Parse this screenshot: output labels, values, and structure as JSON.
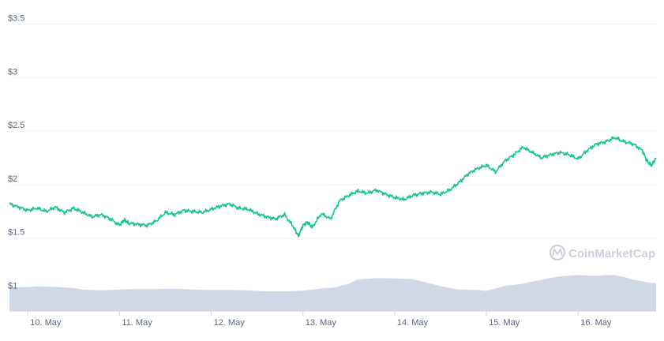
{
  "chart_data": {
    "type": "line",
    "title": "",
    "xlabel": "",
    "ylabel": "",
    "y_ticks": [
      {
        "value": 1.0,
        "label": "$1"
      },
      {
        "value": 1.5,
        "label": "$1.5"
      },
      {
        "value": 2.0,
        "label": "$2"
      },
      {
        "value": 2.5,
        "label": "$2.5"
      },
      {
        "value": 3.0,
        "label": "$3"
      },
      {
        "value": 3.5,
        "label": "$3.5"
      }
    ],
    "ylim": [
      0.82,
      3.68
    ],
    "x_ticks": [
      {
        "day": 0,
        "label": "10. May"
      },
      {
        "day": 1,
        "label": "11. May"
      },
      {
        "day": 2,
        "label": "12. May"
      },
      {
        "day": 3,
        "label": "13. May"
      },
      {
        "day": 4,
        "label": "14. May"
      },
      {
        "day": 5,
        "label": "15. May"
      },
      {
        "day": 6,
        "label": "16. May"
      }
    ],
    "xlim": [
      -0.2,
      6.85
    ],
    "grid": true,
    "series": [
      {
        "kind": "price",
        "color": "#16c784",
        "x": [
          -0.2,
          -0.1,
          0,
          0.1,
          0.2,
          0.3,
          0.4,
          0.5,
          0.6,
          0.7,
          0.8,
          0.9,
          1.0,
          1.05,
          1.1,
          1.2,
          1.3,
          1.4,
          1.5,
          1.6,
          1.7,
          1.8,
          1.9,
          2.0,
          2.1,
          2.2,
          2.3,
          2.4,
          2.5,
          2.6,
          2.7,
          2.8,
          2.9,
          2.95,
          3.0,
          3.05,
          3.1,
          3.2,
          3.3,
          3.4,
          3.5,
          3.6,
          3.7,
          3.8,
          3.9,
          4.0,
          4.1,
          4.2,
          4.3,
          4.4,
          4.5,
          4.6,
          4.7,
          4.8,
          4.9,
          5.0,
          5.1,
          5.2,
          5.3,
          5.4,
          5.5,
          5.6,
          5.7,
          5.8,
          5.9,
          6.0,
          6.1,
          6.2,
          6.3,
          6.4,
          6.5,
          6.6,
          6.7,
          6.75,
          6.8,
          6.85
        ],
        "values": [
          1.82,
          1.79,
          1.76,
          1.78,
          1.75,
          1.79,
          1.74,
          1.78,
          1.74,
          1.7,
          1.72,
          1.68,
          1.62,
          1.67,
          1.64,
          1.63,
          1.62,
          1.66,
          1.74,
          1.72,
          1.76,
          1.75,
          1.74,
          1.77,
          1.8,
          1.82,
          1.78,
          1.77,
          1.73,
          1.7,
          1.68,
          1.72,
          1.6,
          1.52,
          1.62,
          1.65,
          1.6,
          1.73,
          1.68,
          1.85,
          1.9,
          1.94,
          1.92,
          1.95,
          1.91,
          1.88,
          1.86,
          1.9,
          1.92,
          1.93,
          1.91,
          1.95,
          2.02,
          2.1,
          2.15,
          2.18,
          2.12,
          2.22,
          2.28,
          2.35,
          2.3,
          2.25,
          2.28,
          2.3,
          2.28,
          2.24,
          2.32,
          2.38,
          2.4,
          2.44,
          2.4,
          2.38,
          2.32,
          2.22,
          2.18,
          2.25
        ]
      },
      {
        "kind": "volume",
        "color": "#cfd6e4",
        "x": [
          -0.2,
          0,
          0.1,
          0.3,
          0.5,
          0.6,
          0.8,
          1.0,
          1.2,
          1.4,
          1.6,
          1.8,
          2.0,
          2.2,
          2.4,
          2.6,
          2.8,
          3.0,
          3.2,
          3.35,
          3.5,
          3.6,
          3.7,
          3.8,
          4.0,
          4.2,
          4.4,
          4.5,
          4.7,
          4.9,
          5.0,
          5.1,
          5.2,
          5.4,
          5.5,
          5.6,
          5.7,
          5.8,
          6.0,
          6.2,
          6.3,
          6.4,
          6.5,
          6.6,
          6.7,
          6.75,
          6.85
        ],
        "values": [
          0.1,
          0.101,
          0.104,
          0.102,
          0.097,
          0.091,
          0.087,
          0.091,
          0.093,
          0.093,
          0.094,
          0.091,
          0.089,
          0.089,
          0.087,
          0.083,
          0.083,
          0.086,
          0.095,
          0.099,
          0.116,
          0.133,
          0.136,
          0.139,
          0.138,
          0.134,
          0.115,
          0.105,
          0.09,
          0.089,
          0.085,
          0.095,
          0.106,
          0.115,
          0.124,
          0.132,
          0.14,
          0.146,
          0.152,
          0.148,
          0.152,
          0.151,
          0.144,
          0.132,
          0.126,
          0.121,
          0.118
        ]
      }
    ],
    "watermark": "CoinMarketCap"
  }
}
